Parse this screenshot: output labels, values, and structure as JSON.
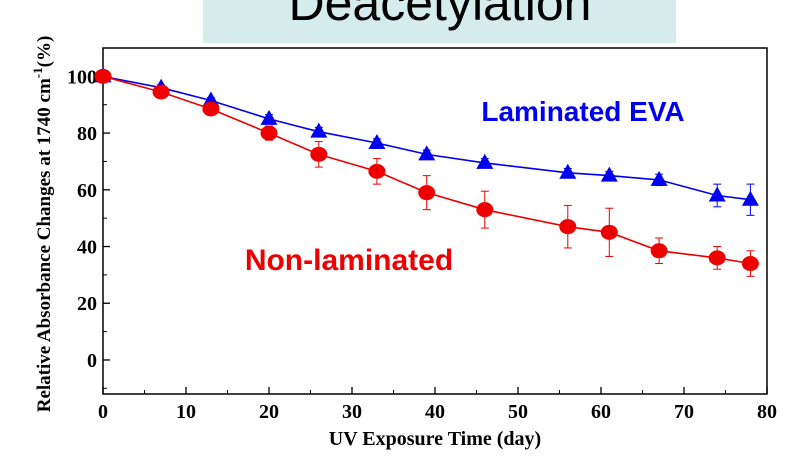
{
  "chart_data": {
    "type": "line",
    "title": "Deacetylation",
    "xlabel": "UV Exposure Time (day)",
    "ylabel_main": "Relative Absorbance Changes at 1740 cm",
    "ylabel_sup": "-1",
    "ylabel_tail": "(%)",
    "xlim": [
      0,
      80
    ],
    "ylim": [
      -12,
      110
    ],
    "x_ticks": [
      "0",
      "10",
      "20",
      "30",
      "40",
      "50",
      "60",
      "70",
      "80"
    ],
    "y_ticks": [
      "0",
      "20",
      "40",
      "60",
      "80",
      "100"
    ],
    "x_tick_values": [
      0,
      10,
      20,
      30,
      40,
      50,
      60,
      70,
      80
    ],
    "y_tick_values": [
      0,
      20,
      40,
      60,
      80,
      100
    ],
    "grid": false,
    "series": [
      {
        "name": "Laminated EVA",
        "color": "#0000ee",
        "marker": "triangle",
        "x": [
          0,
          7,
          13,
          20,
          26,
          33,
          39,
          46,
          56,
          61,
          67,
          74,
          78
        ],
        "y": [
          100,
          96,
          91.5,
          85,
          80.5,
          76.5,
          72.5,
          69.5,
          66,
          65,
          63.5,
          58,
          56.5
        ],
        "err": [
          0.5,
          1,
          1,
          1.5,
          1.5,
          1.5,
          1.5,
          1.5,
          1.5,
          1.5,
          2,
          4,
          5.5
        ]
      },
      {
        "name": "Non-laminated",
        "color": "#ee0000",
        "marker": "circle",
        "x": [
          0,
          7,
          13,
          20,
          26,
          33,
          39,
          46,
          56,
          61,
          67,
          74,
          78
        ],
        "y": [
          100,
          94.5,
          88.5,
          80,
          72.5,
          66.5,
          59,
          53,
          47,
          45,
          38.5,
          36,
          34
        ],
        "err": [
          0.5,
          1,
          1,
          2.5,
          4.5,
          4.5,
          6,
          6.5,
          7.5,
          8.5,
          4.5,
          4,
          4.5
        ]
      }
    ]
  }
}
